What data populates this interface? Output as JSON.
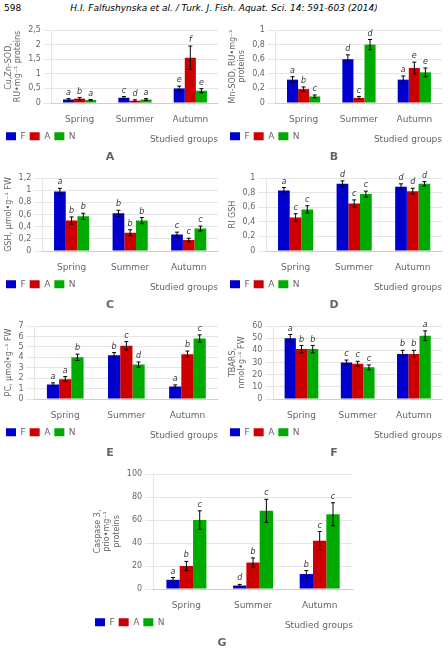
{
  "title": "H.I. Falfushynska et al.  /  Turk. J. Fish. Aquat. Sci. 14: 591-603 (2014)",
  "annotations": [
    "598"
  ],
  "chart_data": [
    {
      "type": "bar",
      "title": "A",
      "ylabel": "Cu,Zn-SOD, RU•mg⁻¹ proteins",
      "categories": [
        "Spring",
        "Summer",
        "Autumn"
      ],
      "series": [
        {
          "name": "F",
          "color": "#0000cc",
          "values": [
            0.12,
            0.18,
            0.5
          ],
          "errors": [
            0.03,
            0.04,
            0.08
          ],
          "letters": [
            "a",
            "c",
            "e"
          ]
        },
        {
          "name": "A",
          "color": "#cc0000",
          "values": [
            0.15,
            0.08,
            1.55
          ],
          "errors": [
            0.04,
            0.03,
            0.4
          ],
          "letters": [
            "b",
            "d",
            "f"
          ]
        },
        {
          "name": "N",
          "color": "#00aa00",
          "values": [
            0.1,
            0.12,
            0.42
          ],
          "errors": [
            0.02,
            0.03,
            0.07
          ],
          "letters": [
            "a",
            "a",
            "e"
          ]
        }
      ],
      "ylim": [
        0,
        2.5
      ],
      "yticks": [
        0,
        {
          "value": 0.5,
          "label": "0,5"
        },
        1,
        {
          "value": 1.5,
          "label": "1,5"
        },
        2,
        {
          "value": 2.5,
          "label": "2,5"
        }
      ],
      "grid": true,
      "legend": "lower left",
      "annotations": [
        "Studied groups"
      ]
    },
    {
      "type": "bar",
      "title": "B",
      "ylabel": "Mn-SOD, RU•mg⁻¹ proteins",
      "categories": [
        "Spring",
        "Summer",
        "Autumn"
      ],
      "series": [
        {
          "name": "F",
          "color": "#0000cc",
          "values": [
            0.32,
            0.6,
            0.32
          ],
          "errors": [
            0.04,
            0.06,
            0.05
          ],
          "letters": [
            "a",
            "d",
            "a"
          ]
        },
        {
          "name": "A",
          "color": "#cc0000",
          "values": [
            0.19,
            0.07,
            0.48
          ],
          "errors": [
            0.03,
            0.02,
            0.08
          ],
          "letters": [
            "b",
            "c",
            "e"
          ]
        },
        {
          "name": "N",
          "color": "#00aa00",
          "values": [
            0.09,
            0.8,
            0.42
          ],
          "errors": [
            0.02,
            0.07,
            0.06
          ],
          "letters": [
            "c",
            "d",
            "e"
          ]
        }
      ],
      "ylim": [
        0,
        1.0
      ],
      "yticks": [
        0,
        {
          "value": 0.2,
          "label": "0,2"
        },
        {
          "value": 0.4,
          "label": "0,4"
        },
        {
          "value": 0.6,
          "label": "0,6"
        },
        {
          "value": 0.8,
          "label": "0,8"
        },
        1
      ],
      "grid": true,
      "legend": "lower left",
      "annotations": [
        "Studied groups"
      ]
    },
    {
      "type": "bar",
      "title": "C",
      "ylabel": "GSH, μmol•g⁻¹ FW",
      "categories": [
        "Spring",
        "Summer",
        "Autumn"
      ],
      "series": [
        {
          "name": "F",
          "color": "#0000cc",
          "values": [
            0.98,
            0.62,
            0.27
          ],
          "errors": [
            0.05,
            0.05,
            0.04
          ],
          "letters": [
            "a",
            "b",
            "c"
          ]
        },
        {
          "name": "A",
          "color": "#cc0000",
          "values": [
            0.5,
            0.3,
            0.18
          ],
          "errors": [
            0.06,
            0.05,
            0.03
          ],
          "letters": [
            "b",
            "b",
            "c"
          ]
        },
        {
          "name": "N",
          "color": "#00aa00",
          "values": [
            0.57,
            0.5,
            0.37
          ],
          "errors": [
            0.05,
            0.05,
            0.04
          ],
          "letters": [
            "b",
            "b",
            "c"
          ]
        }
      ],
      "ylim": [
        0,
        1.2
      ],
      "yticks": [
        0,
        {
          "value": 0.2,
          "label": "0,2"
        },
        {
          "value": 0.4,
          "label": "0,4"
        },
        {
          "value": 0.6,
          "label": "0,6"
        },
        {
          "value": 0.8,
          "label": "0,8"
        },
        1,
        {
          "value": 1.2,
          "label": "1,2"
        }
      ],
      "grid": true,
      "legend": "lower left",
      "annotations": [
        "Studied groups"
      ]
    },
    {
      "type": "bar",
      "title": "D",
      "ylabel": "RI GSH",
      "categories": [
        "Spring",
        "Summer",
        "Autumn"
      ],
      "series": [
        {
          "name": "F",
          "color": "#0000cc",
          "values": [
            0.83,
            0.92,
            0.88
          ],
          "errors": [
            0.04,
            0.04,
            0.04
          ],
          "letters": [
            "a",
            "d",
            "d"
          ]
        },
        {
          "name": "A",
          "color": "#cc0000",
          "values": [
            0.46,
            0.65,
            0.82
          ],
          "errors": [
            0.05,
            0.05,
            0.04
          ],
          "letters": [
            "c",
            "c",
            "d"
          ]
        },
        {
          "name": "N",
          "color": "#00aa00",
          "values": [
            0.57,
            0.78,
            0.92
          ],
          "errors": [
            0.05,
            0.04,
            0.03
          ],
          "letters": [
            "c",
            "c",
            "d"
          ]
        }
      ],
      "ylim": [
        0,
        1.0
      ],
      "yticks": [
        0,
        {
          "value": 0.2,
          "label": "0,2"
        },
        {
          "value": 0.4,
          "label": "0,4"
        },
        {
          "value": 0.6,
          "label": "0,6"
        },
        {
          "value": 0.8,
          "label": "0,8"
        },
        1
      ],
      "grid": true,
      "legend": "lower left",
      "annotations": [
        "Studied groups"
      ]
    },
    {
      "type": "bar",
      "title": "E",
      "ylabel": "PC, μmol•g⁻¹ FW",
      "categories": [
        "Spring",
        "Summer",
        "Autumn"
      ],
      "series": [
        {
          "name": "F",
          "color": "#0000cc",
          "values": [
            1.4,
            4.2,
            1.2
          ],
          "errors": [
            0.15,
            0.25,
            0.15
          ],
          "letters": [
            "a",
            "b",
            "a"
          ]
        },
        {
          "name": "A",
          "color": "#cc0000",
          "values": [
            1.9,
            5.1,
            4.3
          ],
          "errors": [
            0.25,
            0.4,
            0.3
          ],
          "letters": [
            "a",
            "c",
            "b"
          ]
        },
        {
          "name": "N",
          "color": "#00aa00",
          "values": [
            4.0,
            3.3,
            5.8
          ],
          "errors": [
            0.3,
            0.25,
            0.35
          ],
          "letters": [
            "b",
            "d",
            "c"
          ]
        }
      ],
      "ylim": [
        0,
        7
      ],
      "yticks": [
        0,
        1,
        2,
        3,
        4,
        5,
        6,
        7
      ],
      "grid": true,
      "legend": "lower left",
      "annotations": [
        "Studied groups"
      ]
    },
    {
      "type": "bar",
      "title": "F",
      "ylabel": "TBARS, nmol•g⁻¹ FW",
      "categories": [
        "Spring",
        "Summer",
        "Autumn"
      ],
      "series": [
        {
          "name": "F",
          "color": "#0000cc",
          "values": [
            50,
            30,
            37
          ],
          "errors": [
            3,
            2,
            3
          ],
          "letters": [
            "a",
            "c",
            "b"
          ]
        },
        {
          "name": "A",
          "color": "#cc0000",
          "values": [
            41,
            29,
            37
          ],
          "errors": [
            3,
            2,
            3
          ],
          "letters": [
            "b",
            "c",
            "b"
          ]
        },
        {
          "name": "N",
          "color": "#00aa00",
          "values": [
            41,
            26,
            52
          ],
          "errors": [
            3,
            2,
            4
          ],
          "letters": [
            "b",
            "c",
            "a"
          ]
        }
      ],
      "ylim": [
        0,
        60
      ],
      "yticks": [
        0,
        10,
        20,
        30,
        40,
        50,
        60
      ],
      "grid": true,
      "legend": "lower left",
      "annotations": [
        "Studied groups"
      ]
    },
    {
      "type": "bar",
      "title": "G",
      "ylabel": "Caspase 3, prio•mg⁻¹\nproteins",
      "categories": [
        "Spring",
        "Summer",
        "Autumn"
      ],
      "series": [
        {
          "name": "F",
          "color": "#0000cc",
          "values": [
            8,
            3,
            13
          ],
          "errors": [
            2,
            1,
            3
          ],
          "letters": [
            "a",
            "d",
            "b"
          ]
        },
        {
          "name": "A",
          "color": "#cc0000",
          "values": [
            20,
            23,
            42
          ],
          "errors": [
            4,
            4,
            8
          ],
          "letters": [
            "b",
            "b",
            "c"
          ]
        },
        {
          "name": "N",
          "color": "#00aa00",
          "values": [
            60,
            68,
            65
          ],
          "errors": [
            8,
            10,
            10
          ],
          "letters": [
            "c",
            "c",
            "c"
          ]
        }
      ],
      "ylim": [
        0,
        100
      ],
      "yticks": [
        0,
        20,
        40,
        60,
        80,
        100
      ],
      "grid": true,
      "legend": "lower left",
      "annotations": [
        "Studied groups"
      ]
    }
  ]
}
